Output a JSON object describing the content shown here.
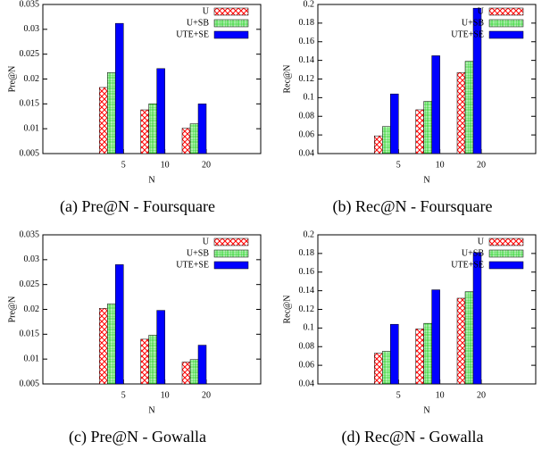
{
  "chart_data": [
    {
      "type": "bar",
      "title": "(a) Pre@N - Foursquare",
      "xlabel": "N",
      "ylabel": "Pre@N",
      "categories": [
        "5",
        "10",
        "20"
      ],
      "ylim": [
        0.005,
        0.035
      ],
      "yticks": [
        0.005,
        0.01,
        0.015,
        0.02,
        0.025,
        0.03,
        0.035
      ],
      "legend": "upper right",
      "series": [
        {
          "name": "U",
          "color": "#ff0000",
          "pattern": "crosshatch",
          "values": [
            0.0183,
            0.0138,
            0.0101
          ]
        },
        {
          "name": "U+SB",
          "color": "#00cc00",
          "pattern": "checker",
          "values": [
            0.0213,
            0.015,
            0.011
          ]
        },
        {
          "name": "UTE+SE",
          "color": "#0000ff",
          "pattern": "solid",
          "values": [
            0.0312,
            0.0221,
            0.015
          ]
        }
      ]
    },
    {
      "type": "bar",
      "title": "(b) Rec@N - Foursquare",
      "xlabel": "N",
      "ylabel": "Rec@N",
      "categories": [
        "5",
        "10",
        "20"
      ],
      "ylim": [
        0.04,
        0.2
      ],
      "yticks": [
        0.04,
        0.06,
        0.08,
        0.1,
        0.12,
        0.14,
        0.16,
        0.18,
        0.2
      ],
      "legend": "upper right",
      "series": [
        {
          "name": "U",
          "color": "#ff0000",
          "pattern": "crosshatch",
          "values": [
            0.059,
            0.087,
            0.127
          ]
        },
        {
          "name": "U+SB",
          "color": "#00cc00",
          "pattern": "checker",
          "values": [
            0.069,
            0.096,
            0.139
          ]
        },
        {
          "name": "UTE+SE",
          "color": "#0000ff",
          "pattern": "solid",
          "values": [
            0.104,
            0.145,
            0.196
          ]
        }
      ]
    },
    {
      "type": "bar",
      "title": "(c) Pre@N - Gowalla",
      "xlabel": "N",
      "ylabel": "Pre@N",
      "categories": [
        "5",
        "10",
        "20"
      ],
      "ylim": [
        0.005,
        0.035
      ],
      "yticks": [
        0.005,
        0.01,
        0.015,
        0.02,
        0.025,
        0.03,
        0.035
      ],
      "legend": "upper right",
      "series": [
        {
          "name": "U",
          "color": "#ff0000",
          "pattern": "crosshatch",
          "values": [
            0.0202,
            0.014,
            0.0094
          ]
        },
        {
          "name": "U+SB",
          "color": "#00cc00",
          "pattern": "checker",
          "values": [
            0.0211,
            0.0148,
            0.0099
          ]
        },
        {
          "name": "UTE+SE",
          "color": "#0000ff",
          "pattern": "solid",
          "values": [
            0.029,
            0.0198,
            0.0128
          ]
        }
      ]
    },
    {
      "type": "bar",
      "title": "(d) Rec@N - Gowalla",
      "xlabel": "N",
      "ylabel": "Rec@N",
      "categories": [
        "5",
        "10",
        "20"
      ],
      "ylim": [
        0.04,
        0.2
      ],
      "yticks": [
        0.04,
        0.06,
        0.08,
        0.1,
        0.12,
        0.14,
        0.16,
        0.18,
        0.2
      ],
      "legend": "upper right",
      "series": [
        {
          "name": "U",
          "color": "#ff0000",
          "pattern": "crosshatch",
          "values": [
            0.073,
            0.099,
            0.132
          ]
        },
        {
          "name": "U+SB",
          "color": "#00cc00",
          "pattern": "checker",
          "values": [
            0.075,
            0.105,
            0.139
          ]
        },
        {
          "name": "UTE+SE",
          "color": "#0000ff",
          "pattern": "solid",
          "values": [
            0.104,
            0.141,
            0.181
          ]
        }
      ]
    }
  ]
}
